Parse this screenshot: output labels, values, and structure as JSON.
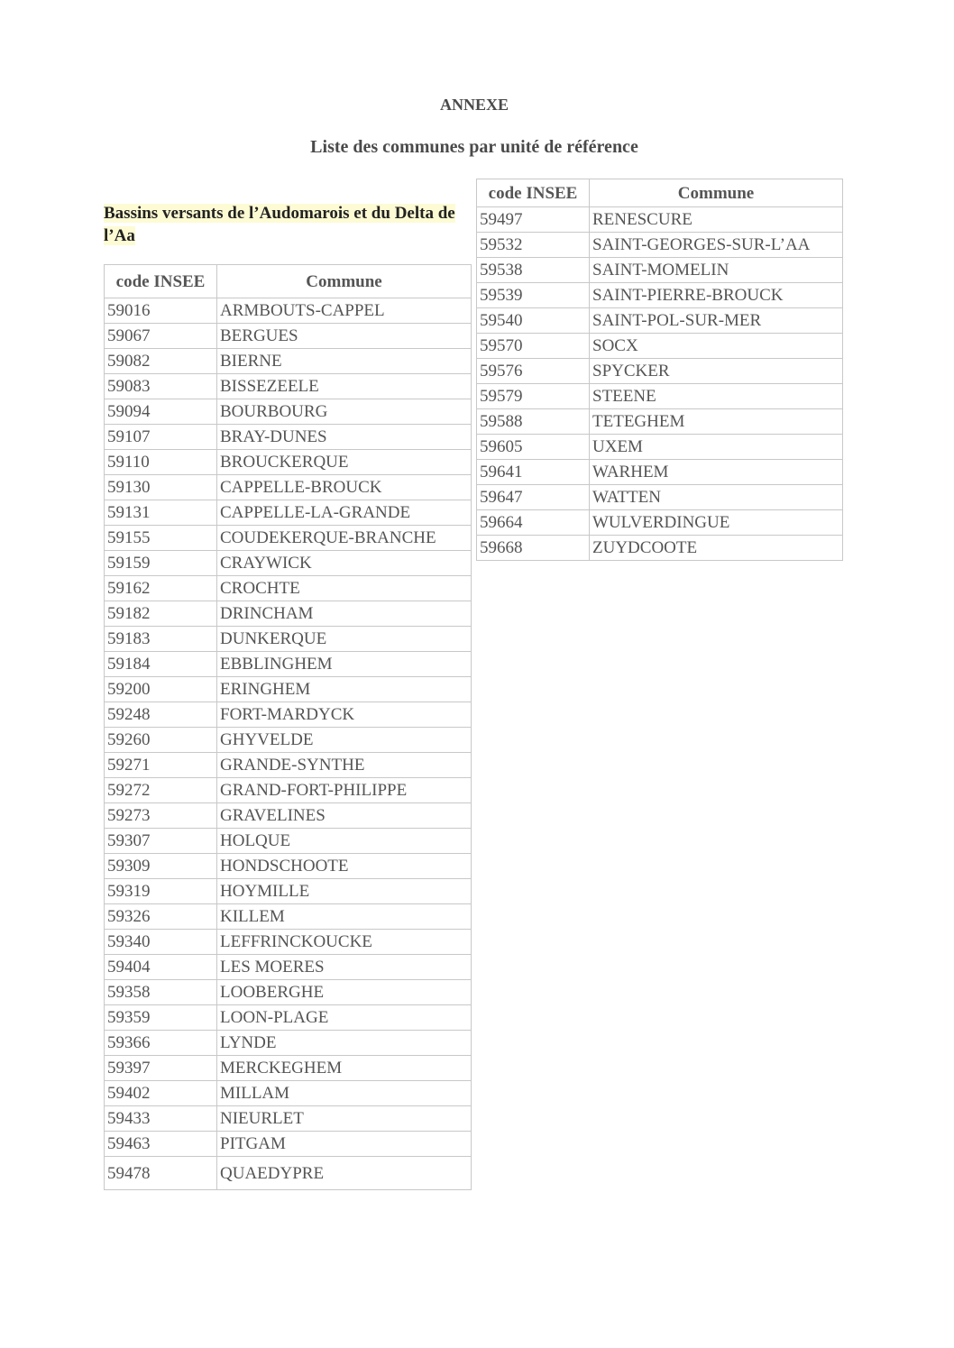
{
  "title": "ANNEXE",
  "subtitle": "Liste des communes par unité de référence",
  "section": "Bassins versants de l’Audomarois et du Delta de l’Aa",
  "columns": [
    "code INSEE",
    "Commune"
  ],
  "table_left": [
    [
      "59016",
      "ARMBOUTS-CAPPEL"
    ],
    [
      "59067",
      "BERGUES"
    ],
    [
      "59082",
      "BIERNE"
    ],
    [
      "59083",
      "BISSEZEELE"
    ],
    [
      "59094",
      "BOURBOURG"
    ],
    [
      "59107",
      "BRAY-DUNES"
    ],
    [
      "59110",
      "BROUCKERQUE"
    ],
    [
      "59130",
      "CAPPELLE-BROUCK"
    ],
    [
      "59131",
      "CAPPELLE-LA-GRANDE"
    ],
    [
      "59155",
      "COUDEKERQUE-BRANCHE"
    ],
    [
      "59159",
      "CRAYWICK"
    ],
    [
      "59162",
      "CROCHTE"
    ],
    [
      "59182",
      "DRINCHAM"
    ],
    [
      "59183",
      "DUNKERQUE"
    ],
    [
      "59184",
      "EBBLINGHEM"
    ],
    [
      "59200",
      "ERINGHEM"
    ],
    [
      "59248",
      "FORT-MARDYCK"
    ],
    [
      "59260",
      "GHYVELDE"
    ],
    [
      "59271",
      "GRANDE-SYNTHE"
    ],
    [
      "59272",
      "GRAND-FORT-PHILIPPE"
    ],
    [
      "59273",
      "GRAVELINES"
    ],
    [
      "59307",
      "HOLQUE"
    ],
    [
      "59309",
      "HONDSCHOOTE"
    ],
    [
      "59319",
      "HOYMILLE"
    ],
    [
      "59326",
      "KILLEM"
    ],
    [
      "59340",
      "LEFFRINCKOUCKE"
    ],
    [
      "59404",
      "LES MOERES"
    ],
    [
      "59358",
      "LOOBERGHE"
    ],
    [
      "59359",
      "LOON-PLAGE"
    ],
    [
      "59366",
      "LYNDE"
    ],
    [
      "59397",
      "MERCKEGHEM"
    ],
    [
      "59402",
      "MILLAM"
    ],
    [
      "59433",
      "NIEURLET"
    ],
    [
      "59463",
      "PITGAM"
    ],
    [
      "59478",
      "QUAEDYPRE"
    ]
  ],
  "table_right": [
    [
      "59497",
      "RENESCURE"
    ],
    [
      "59532",
      "SAINT-GEORGES-SUR-L’AA"
    ],
    [
      "59538",
      "SAINT-MOMELIN"
    ],
    [
      "59539",
      "SAINT-PIERRE-BROUCK"
    ],
    [
      "59540",
      "SAINT-POL-SUR-MER"
    ],
    [
      "59570",
      "SOCX"
    ],
    [
      "59576",
      "SPYCKER"
    ],
    [
      "59579",
      "STEENE"
    ],
    [
      "59588",
      "TETEGHEM"
    ],
    [
      "59605",
      "UXEM"
    ],
    [
      "59641",
      "WARHEM"
    ],
    [
      "59647",
      "WATTEN"
    ],
    [
      "59664",
      "WULVERDINGUE"
    ],
    [
      "59668",
      "ZUYDCOOTE"
    ]
  ]
}
